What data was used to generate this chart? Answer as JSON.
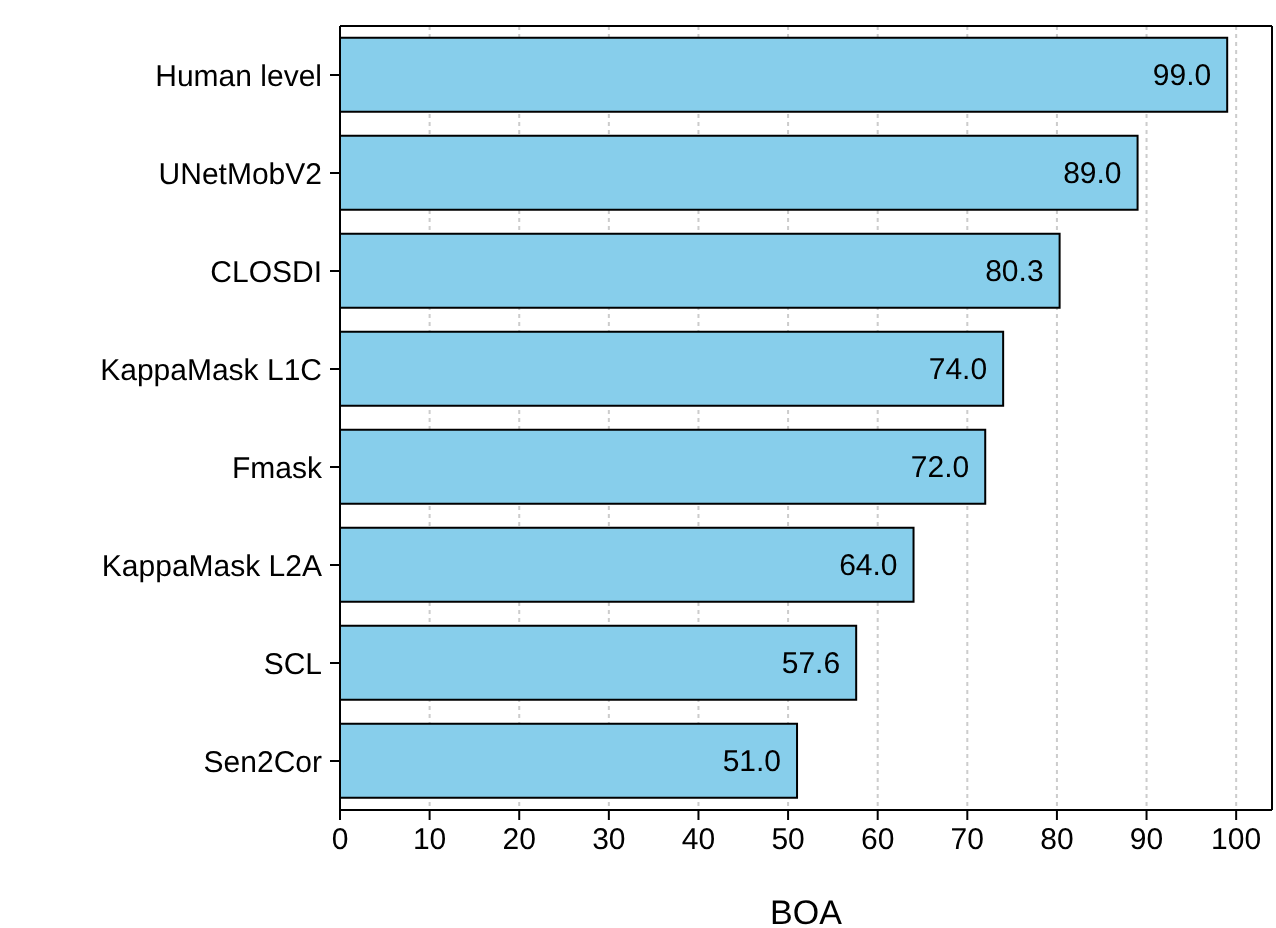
{
  "chart_data": {
    "type": "bar",
    "orientation": "horizontal",
    "xlabel": "BOA",
    "categories": [
      "Human level",
      "UNetMobV2",
      "CLOSDI",
      "KappaMask L1C",
      "Fmask",
      "KappaMask L2A",
      "SCL",
      "Sen2Cor"
    ],
    "values": [
      99.0,
      89.0,
      80.3,
      74.0,
      72.0,
      64.0,
      57.6,
      51.0
    ],
    "color": "#87ceeb",
    "value_labels": [
      "99.0",
      "89.0",
      "80.3",
      "74.0",
      "72.0",
      "64.0",
      "57.6",
      "51.0"
    ],
    "grid": "x",
    "xlim": [
      0,
      104
    ],
    "xticks": [
      0,
      10,
      20,
      30,
      40,
      50,
      60,
      70,
      80,
      90,
      100
    ]
  }
}
